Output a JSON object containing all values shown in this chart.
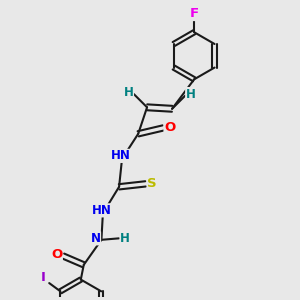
{
  "background_color": "#e8e8e8",
  "bond_color": "#1a1a1a",
  "atom_colors": {
    "F": "#ee00ee",
    "O": "#ff0000",
    "N": "#0000ee",
    "S": "#bbbb00",
    "H": "#008080",
    "I": "#9900cc",
    "C": "#1a1a1a"
  },
  "figsize": [
    3.0,
    3.0
  ],
  "dpi": 100,
  "xlim": [
    0,
    10
  ],
  "ylim": [
    0,
    10
  ]
}
